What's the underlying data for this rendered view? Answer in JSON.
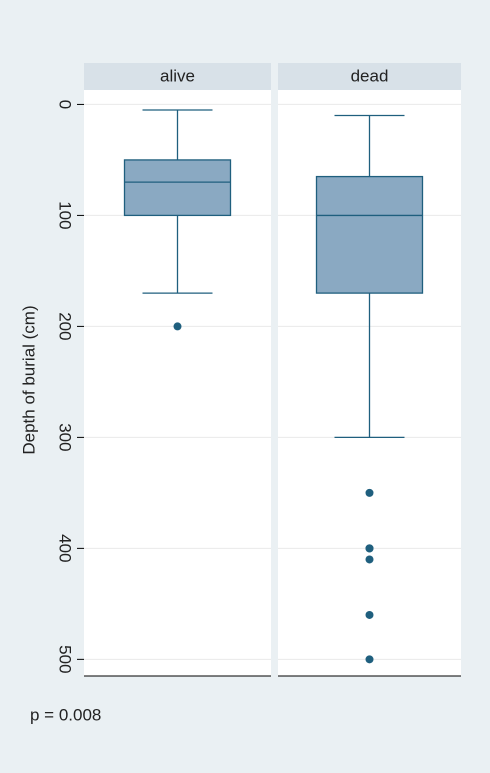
{
  "chart_data": {
    "type": "box",
    "ylabel": "Depth of burial (cm)",
    "annotation": "p = 0.008",
    "ylim": [
      -13,
      515
    ],
    "yreverse": true,
    "yticks": [
      0,
      100,
      200,
      300,
      400,
      500
    ],
    "grid": true,
    "box_color": "#8aa9c2",
    "line_color": "#1f5f7e",
    "panels": [
      {
        "name": "alive",
        "whisker_low": 5,
        "q1": 50,
        "median": 70,
        "q3": 100,
        "whisker_high": 170,
        "outliers": [
          200
        ]
      },
      {
        "name": "dead",
        "whisker_low": 10,
        "q1": 65,
        "median": 100,
        "q3": 170,
        "whisker_high": 300,
        "outliers": [
          350,
          400,
          400,
          410,
          460,
          500
        ]
      }
    ]
  }
}
